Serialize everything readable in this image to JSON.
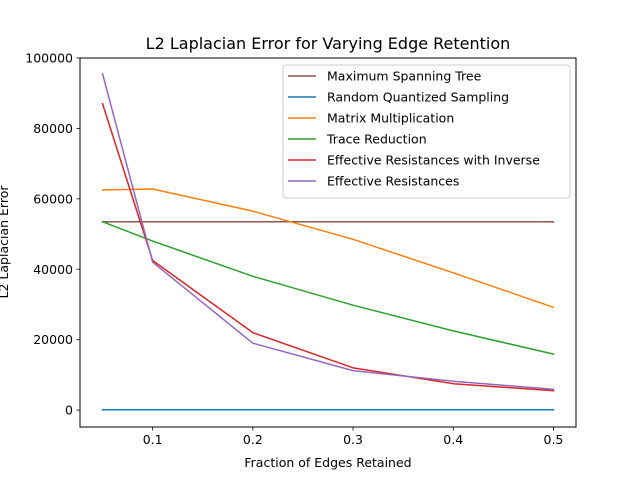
{
  "chart_data": {
    "type": "line",
    "title": "L2 Laplacian Error for Varying Edge Retention",
    "xlabel": "Fraction of Edges Retained",
    "ylabel": "L2 Laplacian Error",
    "xlim": [
      0.0275,
      0.5225
    ],
    "ylim": [
      -4800,
      100000
    ],
    "xticks": [
      0.1,
      0.2,
      0.3,
      0.4,
      0.5
    ],
    "xtick_labels": [
      "0.1",
      "0.2",
      "0.3",
      "0.4",
      "0.5"
    ],
    "yticks": [
      0,
      20000,
      40000,
      60000,
      80000,
      100000
    ],
    "ytick_labels": [
      "0",
      "20000",
      "40000",
      "60000",
      "80000",
      "100000"
    ],
    "grid": false,
    "legend_position": "top-right",
    "x": [
      0.05,
      0.1,
      0.2,
      0.3,
      0.4,
      0.5
    ],
    "series": [
      {
        "name": "Maximum Spanning Tree",
        "color": "#8c564b",
        "values": [
          53500,
          53500,
          53500,
          53500,
          53500,
          53500
        ]
      },
      {
        "name": "Random Quantized Sampling",
        "color": "#1f77b4",
        "values": [
          100,
          100,
          100,
          100,
          100,
          100
        ]
      },
      {
        "name": "Matrix Multiplication",
        "color": "#ff7f0e",
        "values": [
          62500,
          62800,
          56500,
          48500,
          39000,
          29200
        ]
      },
      {
        "name": "Trace Reduction",
        "color": "#2ca02c",
        "values": [
          53500,
          48000,
          38000,
          29800,
          22500,
          15900
        ]
      },
      {
        "name": "Effective Resistances with Inverse",
        "color": "#d62728",
        "values": [
          87000,
          42500,
          22000,
          12000,
          7500,
          5500
        ]
      },
      {
        "name": "Effective Resistances",
        "color": "#9467bd",
        "values": [
          95500,
          42000,
          19000,
          11200,
          8200,
          5900
        ]
      }
    ]
  }
}
